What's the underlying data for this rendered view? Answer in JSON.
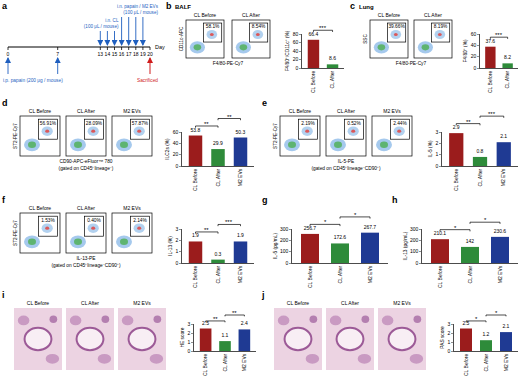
{
  "timeline": {
    "panel": "a",
    "days": [
      0,
      7,
      13,
      14,
      15,
      16,
      17,
      18,
      19,
      20
    ],
    "axis_label": "Day",
    "events": [
      {
        "label": [
          "i.n. CL",
          "(100 μL / mouse)"
        ],
        "days": [
          13,
          14,
          15
        ]
      },
      {
        "label": [
          "i.n. papain / M2 EVs",
          "(100 μL / mouse)"
        ],
        "days": [
          16,
          17,
          18,
          19
        ]
      },
      {
        "label": [
          "i.p. papain (200 μg / mouse)"
        ],
        "days": [
          0,
          7
        ]
      },
      {
        "label": [
          "Sacrificed"
        ],
        "days": [
          20
        ]
      }
    ]
  },
  "flow_panels": [
    {
      "panel": "b",
      "header": "BALF",
      "y_label": "CD11c-APC",
      "x_label": "F4/80-PE-Cy7",
      "plots": [
        {
          "title": "CL Before",
          "gate": "58.1%"
        },
        {
          "title": "CL After",
          "gate": "8.54%"
        }
      ]
    },
    {
      "panel": "c",
      "header": "Lung",
      "y_label": "SSC",
      "x_label": "F4/80-PE-Cy7",
      "plots": [
        {
          "title": "CL Before",
          "gate": "39.66%"
        },
        {
          "title": "CL After",
          "gate": "8.19%"
        }
      ]
    },
    {
      "panel": "d",
      "y_label": "ST2-PE-Cy7",
      "x_label": "CD90-APC-eFluor™ 780",
      "note": "(gated on CD45⁺lineage⁻)",
      "plots": [
        {
          "title": "CL Before",
          "gate": "56.91%"
        },
        {
          "title": "CL After",
          "gate": "28.09%"
        },
        {
          "title": "M2 EVs",
          "gate": "57.87%"
        }
      ]
    },
    {
      "panel": "e",
      "y_label": "ST2-PE-Cy7",
      "x_label": "IL-5-PE",
      "note": "(gated on CD45⁺lineage⁻CD90⁺)",
      "plots": [
        {
          "title": "CL Before",
          "gate": "2.19%"
        },
        {
          "title": "CL After",
          "gate": "0.52%"
        },
        {
          "title": "M2 EVs",
          "gate": "2.44%"
        }
      ]
    },
    {
      "panel": "f",
      "y_label": "ST2-PE-Cy7",
      "x_label": "IL-13-PE",
      "note": "(gated on CD45⁺lineage⁻CD90⁺)",
      "plots": [
        {
          "title": "CL Before",
          "gate": "1.53%"
        },
        {
          "title": "CL After",
          "gate": "0.40%"
        },
        {
          "title": "M2 EVs",
          "gate": "2.14%"
        }
      ]
    }
  ],
  "images": [
    {
      "panel": "i",
      "titles": [
        "CL Before",
        "CL After",
        "M2 EVs"
      ]
    },
    {
      "panel": "j",
      "titles": [
        "CL Before",
        "CL After",
        "M2 EVs"
      ]
    }
  ],
  "chart_data": [
    {
      "panel": "b",
      "type": "bar",
      "categories": [
        "CL Before",
        "CL After"
      ],
      "values": [
        66.4,
        8.6
      ],
      "colors": [
        "#9b1c1c",
        "#2e8b3a"
      ],
      "y_label": "F4/80⁺/CD11c⁺ (%)",
      "ylim": [
        0,
        80
      ],
      "yticks": [
        0,
        20,
        40,
        60,
        80
      ],
      "data_labels": true,
      "annotations": [
        {
          "between": [
            "CL Before",
            "CL After"
          ],
          "text": "***"
        }
      ]
    },
    {
      "panel": "c",
      "type": "bar",
      "categories": [
        "CL Before",
        "CL After"
      ],
      "values": [
        37.6,
        8.2
      ],
      "colors": [
        "#9b1c1c",
        "#2e8b3a"
      ],
      "y_label": "F4/80⁺ (%)",
      "ylim": [
        0,
        60
      ],
      "yticks": [
        0,
        20,
        40,
        60
      ],
      "data_labels": true,
      "annotations": [
        {
          "between": [
            "CL Before",
            "CL After"
          ],
          "text": "***"
        }
      ]
    },
    {
      "panel": "d",
      "type": "bar",
      "categories": [
        "CL Before",
        "CL After",
        "M2 EVs"
      ],
      "values": [
        53.8,
        29.9,
        50.3
      ],
      "colors": [
        "#9b1c1c",
        "#2e8b3a",
        "#1f3a93"
      ],
      "y_label": "ILC2s (%)",
      "ylim": [
        0,
        60
      ],
      "yticks": [
        0,
        20,
        40,
        60
      ],
      "data_labels": true,
      "annotations": [
        {
          "between": [
            "CL Before",
            "CL After"
          ],
          "text": "**"
        },
        {
          "between": [
            "CL After",
            "M2 EVs"
          ],
          "text": "**"
        }
      ]
    },
    {
      "panel": "e",
      "type": "bar",
      "categories": [
        "CL Before",
        "CL After",
        "M2 EVs"
      ],
      "values": [
        2.9,
        0.8,
        2.1
      ],
      "colors": [
        "#9b1c1c",
        "#2e8b3a",
        "#1f3a93"
      ],
      "y_label": "IL-5 (%)",
      "ylim": [
        0,
        3
      ],
      "yticks": [
        0,
        1,
        2,
        3
      ],
      "data_labels": true,
      "annotations": [
        {
          "between": [
            "CL Before",
            "CL After"
          ],
          "text": "**"
        },
        {
          "between": [
            "CL After",
            "M2 EVs"
          ],
          "text": "***"
        }
      ]
    },
    {
      "panel": "f",
      "type": "bar",
      "categories": [
        "CL Before",
        "CL After",
        "M2 EVs"
      ],
      "values": [
        1.9,
        0.3,
        1.9
      ],
      "colors": [
        "#9b1c1c",
        "#2e8b3a",
        "#1f3a93"
      ],
      "y_label": "IL-13 (%)",
      "ylim": [
        0,
        3
      ],
      "yticks": [
        0,
        1,
        2,
        3
      ],
      "data_labels": true,
      "annotations": [
        {
          "between": [
            "CL Before",
            "CL After"
          ],
          "text": "**"
        },
        {
          "between": [
            "CL After",
            "M2 EVs"
          ],
          "text": "***"
        }
      ]
    },
    {
      "panel": "g",
      "type": "bar",
      "categories": [
        "CL Before",
        "CL After",
        "M2 EVs"
      ],
      "values": [
        256.7,
        172.6,
        267.7
      ],
      "colors": [
        "#9b1c1c",
        "#2e8b3a",
        "#1f3a93"
      ],
      "y_label": "IL-5 (pg/mL)",
      "ylim": [
        0,
        300
      ],
      "yticks": [
        0,
        100,
        200,
        300
      ],
      "data_labels": true,
      "annotations": [
        {
          "between": [
            "CL Before",
            "CL After"
          ],
          "text": "*"
        },
        {
          "between": [
            "CL After",
            "M2 EVs"
          ],
          "text": "*"
        }
      ]
    },
    {
      "panel": "h",
      "type": "bar",
      "categories": [
        "CL Before",
        "CL After",
        "M2 EVs"
      ],
      "values": [
        210.1,
        142,
        230.6
      ],
      "colors": [
        "#9b1c1c",
        "#2e8b3a",
        "#1f3a93"
      ],
      "y_label": "IL-13 (pg/mL)",
      "ylim": [
        0,
        300
      ],
      "yticks": [
        0,
        100,
        200,
        300
      ],
      "data_labels": true,
      "annotations": [
        {
          "between": [
            "CL Before",
            "CL After"
          ],
          "text": "*"
        },
        {
          "between": [
            "CL After",
            "M2 EVs"
          ],
          "text": "*"
        }
      ]
    },
    {
      "panel": "i",
      "type": "bar",
      "categories": [
        "CL Before",
        "CL After",
        "M2 EVs"
      ],
      "values": [
        2.5,
        1.1,
        2.4
      ],
      "colors": [
        "#9b1c1c",
        "#2e8b3a",
        "#1f3a93"
      ],
      "y_label": "HE score",
      "ylim": [
        0,
        3
      ],
      "yticks": [
        0,
        1,
        2,
        3
      ],
      "data_labels": true,
      "annotations": [
        {
          "between": [
            "CL Before",
            "CL After"
          ],
          "text": "**"
        },
        {
          "between": [
            "CL After",
            "M2 EVs"
          ],
          "text": "**"
        }
      ]
    },
    {
      "panel": "j",
      "type": "bar",
      "categories": [
        "CL Before",
        "CL After",
        "M2 EVs"
      ],
      "values": [
        2.5,
        1.2,
        2.1
      ],
      "colors": [
        "#9b1c1c",
        "#2e8b3a",
        "#1f3a93"
      ],
      "y_label": "PAS score",
      "ylim": [
        0,
        3
      ],
      "yticks": [
        0,
        1,
        2,
        3
      ],
      "data_labels": true,
      "annotations": [
        {
          "between": [
            "CL Before",
            "CL After"
          ],
          "text": "*"
        },
        {
          "between": [
            "CL After",
            "M2 EVs"
          ],
          "text": "*"
        }
      ]
    }
  ]
}
